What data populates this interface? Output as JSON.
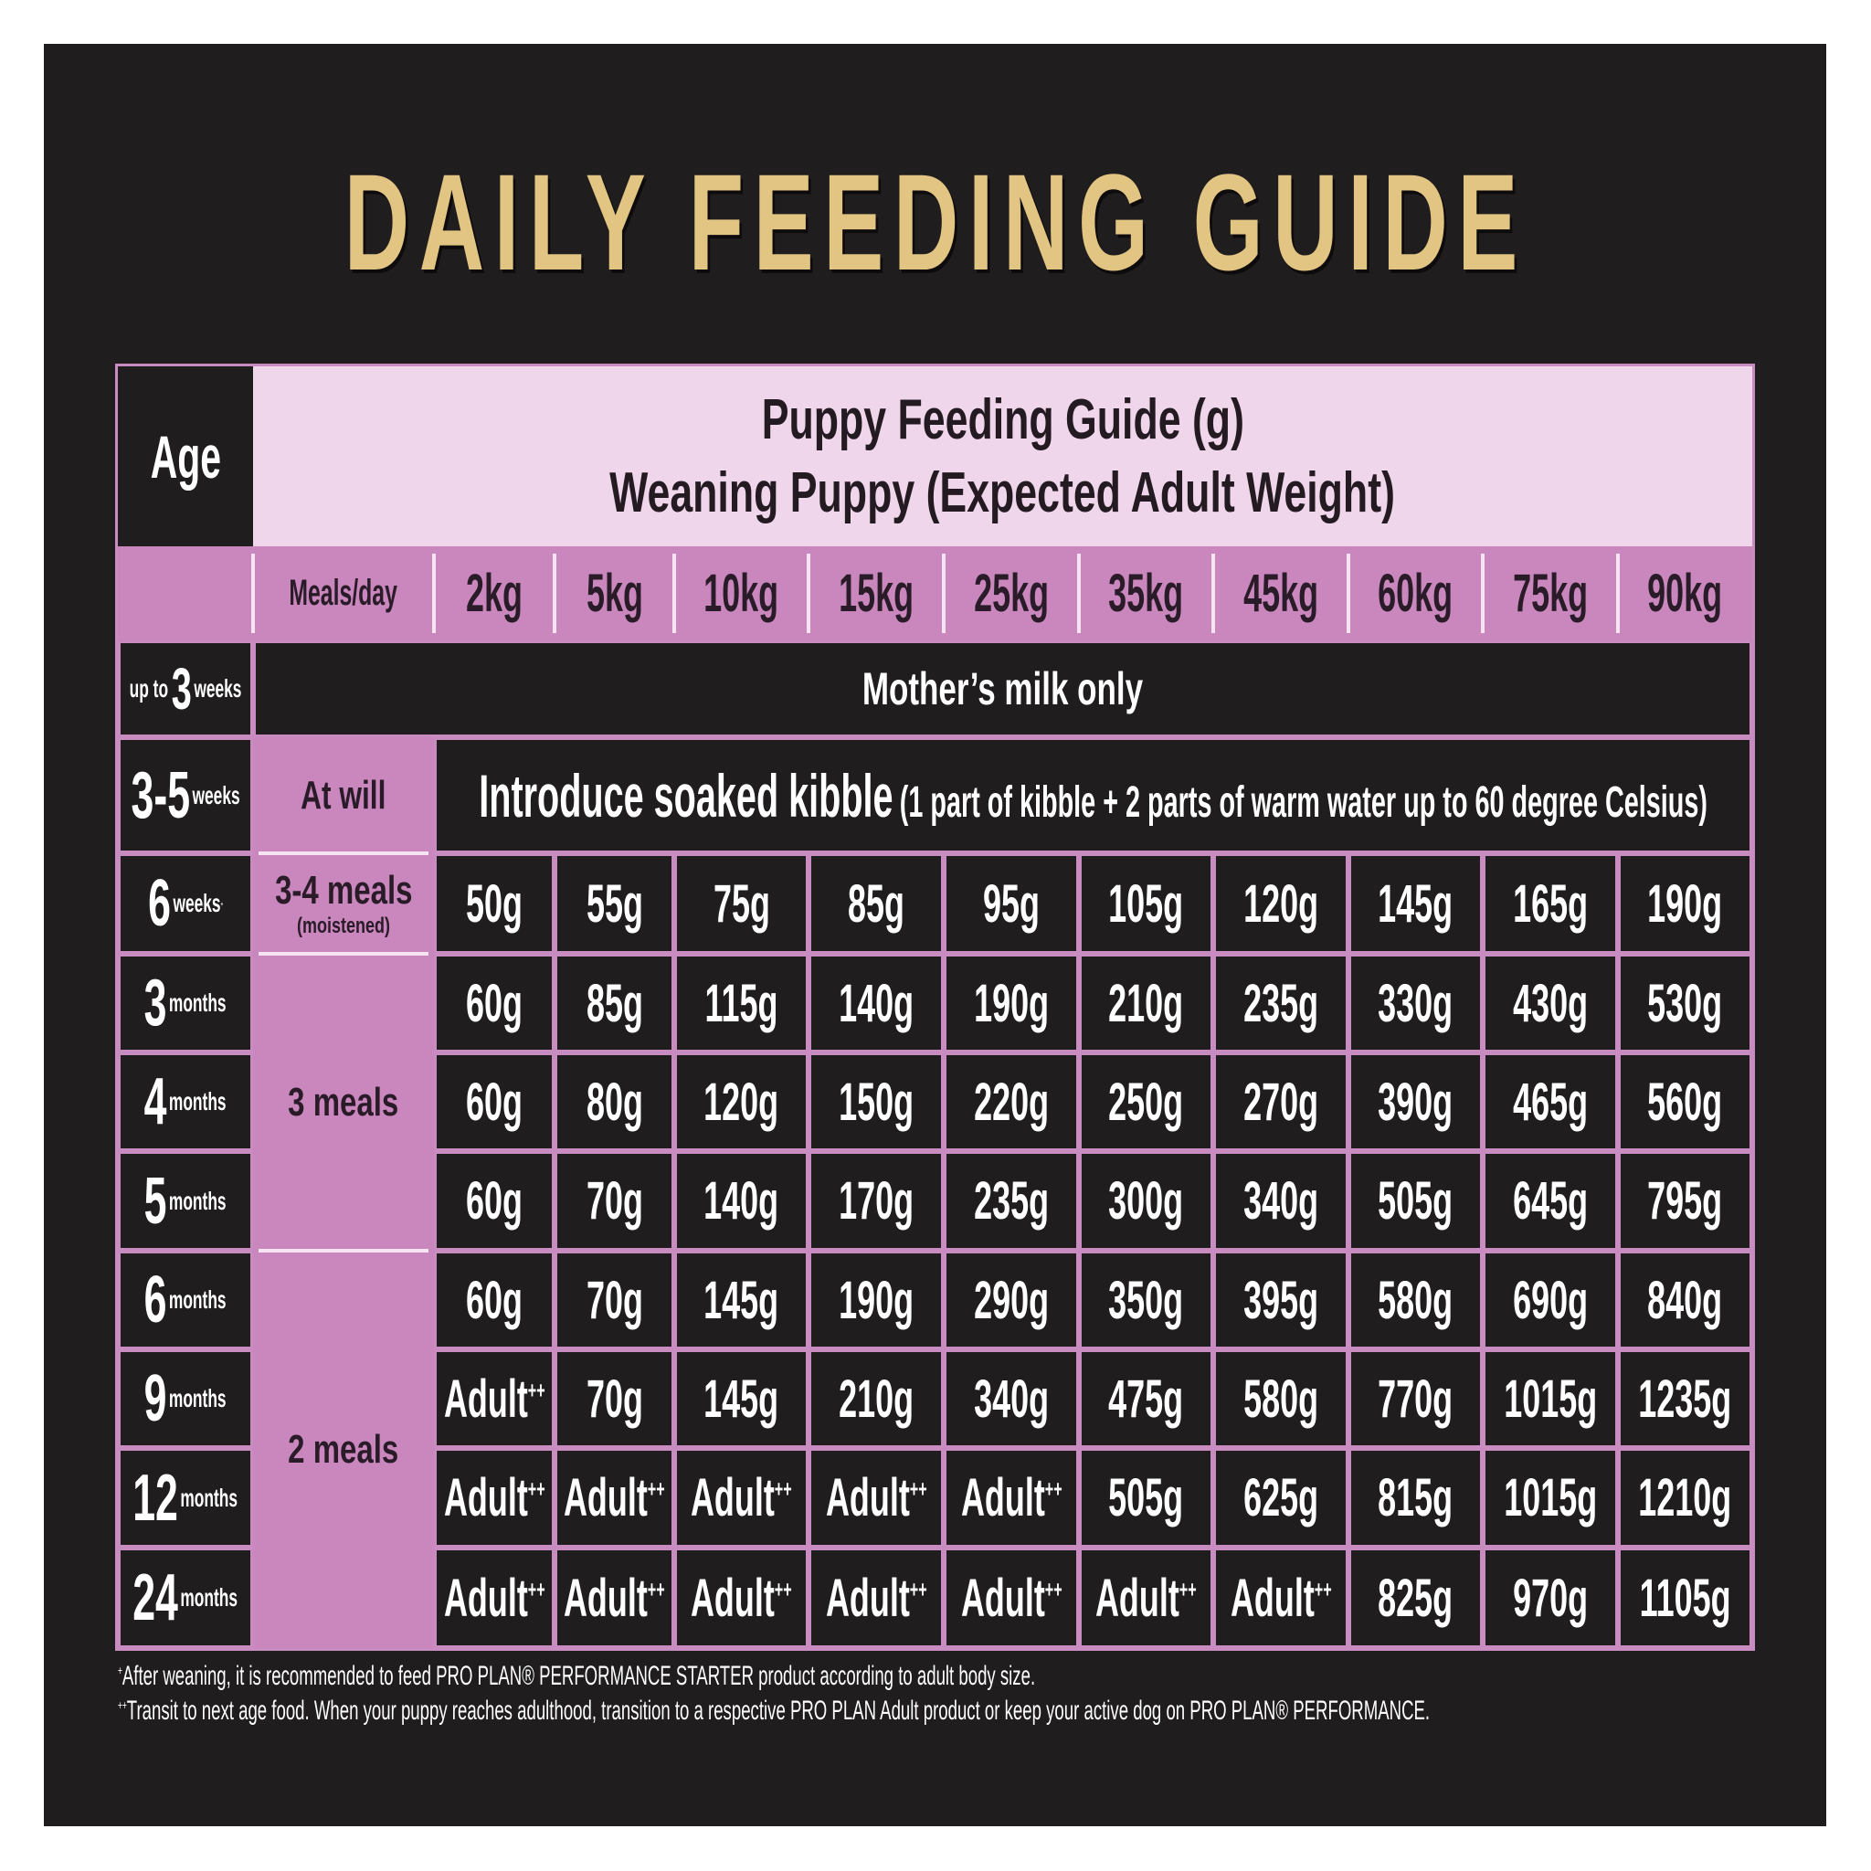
{
  "title": "DAILY FEEDING GUIDE",
  "colors": {
    "panel": "#1f1d1e",
    "title_gold": "#e2c483",
    "header_light_pink": "#efd6ea",
    "accent_pink": "#c987bd",
    "border_pink": "#c98cc0",
    "dark_text": "#2a1b28",
    "value_text": "#ffffff"
  },
  "table": {
    "age_header": "Age",
    "guide_title_line1": "Puppy Feeding Guide (g)",
    "guide_title_line2": "Weaning Puppy (Expected Adult Weight)",
    "meals_header": "Meals/day",
    "weights": [
      "2kg",
      "5kg",
      "10kg",
      "15kg",
      "25kg",
      "35kg",
      "45kg",
      "60kg",
      "75kg",
      "90kg"
    ],
    "rows": [
      {
        "age_prefix": "up to",
        "age_num": "3",
        "age_unit": "weeks",
        "age_sup": "",
        "meals": "",
        "meals_note": "",
        "span_text": "Mother’s milk only",
        "values": []
      },
      {
        "age_prefix": "",
        "age_num": "3-5",
        "age_unit": "weeks",
        "age_sup": "",
        "meals": "At will",
        "meals_note": "",
        "span_text_main": "Introduce soaked kibble",
        "span_text_note": "(1 part of kibble + 2 parts of warm water up to 60 degree Celsius)",
        "values": []
      },
      {
        "age_prefix": "",
        "age_num": "6",
        "age_unit": "weeks",
        "age_sup": "+",
        "meals": "3-4 meals",
        "meals_note": "(moistened)",
        "values": [
          "50g",
          "55g",
          "75g",
          "85g",
          "95g",
          "105g",
          "120g",
          "145g",
          "165g",
          "190g"
        ]
      },
      {
        "age_prefix": "",
        "age_num": "3",
        "age_unit": "months",
        "age_sup": "",
        "meals": "3 meals",
        "values": [
          "60g",
          "85g",
          "115g",
          "140g",
          "190g",
          "210g",
          "235g",
          "330g",
          "430g",
          "530g"
        ]
      },
      {
        "age_prefix": "",
        "age_num": "4",
        "age_unit": "months",
        "age_sup": "",
        "meals": "3 meals",
        "values": [
          "60g",
          "80g",
          "120g",
          "150g",
          "220g",
          "250g",
          "270g",
          "390g",
          "465g",
          "560g"
        ]
      },
      {
        "age_prefix": "",
        "age_num": "5",
        "age_unit": "months",
        "age_sup": "",
        "meals": "3 meals",
        "values": [
          "60g",
          "70g",
          "140g",
          "170g",
          "235g",
          "300g",
          "340g",
          "505g",
          "645g",
          "795g"
        ]
      },
      {
        "age_prefix": "",
        "age_num": "6",
        "age_unit": "months",
        "age_sup": "",
        "meals": "2 meals",
        "values": [
          "60g",
          "70g",
          "145g",
          "190g",
          "290g",
          "350g",
          "395g",
          "580g",
          "690g",
          "840g"
        ]
      },
      {
        "age_prefix": "",
        "age_num": "9",
        "age_unit": "months",
        "age_sup": "",
        "meals": "2 meals",
        "values": [
          "Adult++",
          "70g",
          "145g",
          "210g",
          "340g",
          "475g",
          "580g",
          "770g",
          "1015g",
          "1235g"
        ]
      },
      {
        "age_prefix": "",
        "age_num": "12",
        "age_unit": "months",
        "age_sup": "",
        "meals": "2 meals",
        "values": [
          "Adult++",
          "Adult++",
          "Adult++",
          "Adult++",
          "Adult++",
          "505g",
          "625g",
          "815g",
          "1015g",
          "1210g"
        ]
      },
      {
        "age_prefix": "",
        "age_num": "24",
        "age_unit": "months",
        "age_sup": "",
        "meals": "2 meals",
        "values": [
          "Adult++",
          "Adult++",
          "Adult++",
          "Adult++",
          "Adult++",
          "Adult++",
          "Adult++",
          "825g",
          "970g",
          "1105g"
        ]
      }
    ],
    "meal_groups": [
      {
        "label": "3 meals",
        "rows": "3–5 months"
      },
      {
        "label": "2 meals",
        "rows": "6–24 months"
      }
    ]
  },
  "footnotes": [
    {
      "marker": "+",
      "text": "After weaning, it is recommended to feed PRO PLAN® PERFORMANCE STARTER product according to adult body size."
    },
    {
      "marker": "++",
      "text": "Transit to next age food. When your puppy reaches adulthood, transition to a respective PRO PLAN Adult product or keep your active dog on PRO PLAN® PERFORMANCE."
    }
  ]
}
